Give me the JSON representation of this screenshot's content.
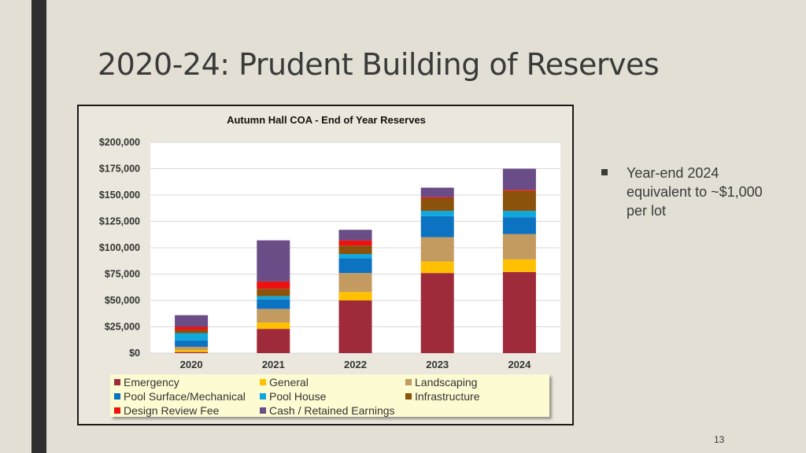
{
  "slide": {
    "title": "2020-24:  Prudent Building of Reserves",
    "bullet": "Year-end 2024 equivalent to ~$1,000 per lot",
    "page_number": "13"
  },
  "chart_data": {
    "type": "bar",
    "stacked": true,
    "title": "Autumn Hall COA - End of Year Reserves",
    "xlabel": "",
    "ylabel": "",
    "categories": [
      "2020",
      "2021",
      "2022",
      "2023",
      "2024"
    ],
    "ylim": [
      0,
      200000
    ],
    "yticks": [
      0,
      25000,
      50000,
      75000,
      100000,
      125000,
      150000,
      175000,
      200000
    ],
    "ytick_labels": [
      "$0",
      "$25,000",
      "$50,000",
      "$75,000",
      "$100,000",
      "$125,000",
      "$150,000",
      "$175,000",
      "$200,000"
    ],
    "grid": true,
    "legend_position": "bottom",
    "series": [
      {
        "name": "Emergency",
        "color": "#9e2a3a",
        "values": [
          1000,
          23000,
          50000,
          76000,
          77000
        ]
      },
      {
        "name": "General",
        "color": "#ffc000",
        "values": [
          2000,
          6000,
          8000,
          11000,
          12000
        ]
      },
      {
        "name": "Landscaping",
        "color": "#c39a60",
        "values": [
          3000,
          13000,
          18000,
          23000,
          24000
        ]
      },
      {
        "name": "Pool Surface/Mechanical",
        "color": "#0c72c2",
        "values": [
          6000,
          9000,
          14000,
          20000,
          16000
        ]
      },
      {
        "name": "Pool House",
        "color": "#0fa7dc",
        "values": [
          7000,
          3000,
          4000,
          5000,
          6000
        ]
      },
      {
        "name": "Infrastructure",
        "color": "#8a520a",
        "values": [
          3000,
          7000,
          8000,
          12000,
          19000
        ]
      },
      {
        "name": "Design Review Fee",
        "color": "#ee1111",
        "values": [
          3000,
          7000,
          5000,
          1000,
          1000
        ]
      },
      {
        "name": "Cash / Retained Earnings",
        "color": "#6a4c86",
        "values": [
          11000,
          39000,
          10000,
          9000,
          20000
        ]
      }
    ]
  }
}
